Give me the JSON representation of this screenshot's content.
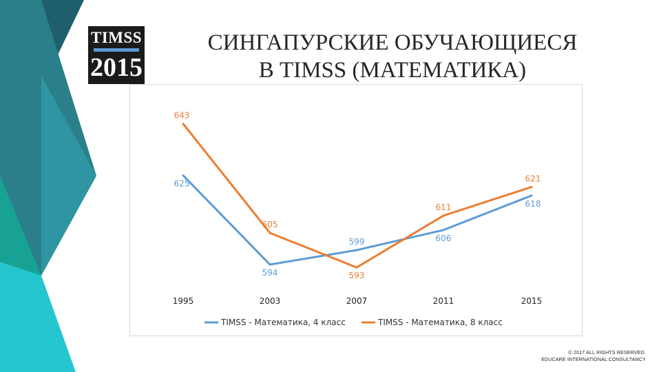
{
  "slide": {
    "title_line1": "СИНГАПУРСКИЕ ОБУЧАЮЩИЕСЯ",
    "title_line2": "В TIMSS (МАТЕМАТИКА)",
    "logo_top": "TIMSS",
    "logo_bottom": "2015",
    "copyright_line1": "© 2017 ALL RIGHTS RESERVED.",
    "copyright_line2": "EDUCARE INTERNATIONAL CONSULTANCY",
    "colors": {
      "teal_dark": "#1f5f6b",
      "teal_mid": "#2b8a94",
      "teal_light": "#26c6cf",
      "green": "#1aa596"
    }
  },
  "chart_data": {
    "type": "line",
    "categories": [
      "1995",
      "2003",
      "2007",
      "2011",
      "2015"
    ],
    "series": [
      {
        "name": "TIMSS - Математика, 4 класс",
        "values": [
          625,
          594,
          599,
          606,
          618
        ],
        "color": "#5b9bd5"
      },
      {
        "name": "TIMSS - Математика, 8 класс",
        "values": [
          643,
          605,
          593,
          611,
          621
        ],
        "color": "#ed7d31"
      }
    ],
    "ylim": [
      588,
      647
    ],
    "data_labels": true,
    "grid": false,
    "legend": "bottom"
  }
}
